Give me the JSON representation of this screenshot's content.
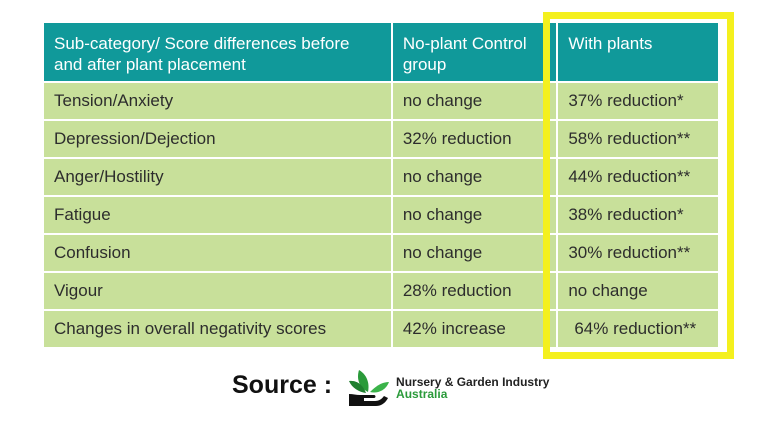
{
  "table": {
    "headers": [
      "Sub-category/ Score differences before and after plant placement",
      "No-plant Control group",
      "With plants"
    ],
    "rows": [
      [
        "Tension/Anxiety",
        "no change",
        "37% reduction*"
      ],
      [
        "Depression/Dejection",
        "32% reduction",
        "58% reduction**"
      ],
      [
        "Anger/Hostility",
        "no change",
        "44% reduction**"
      ],
      [
        "Fatigue",
        "no change",
        "38% reduction*"
      ],
      [
        "Confusion",
        "no change",
        "30% reduction**"
      ],
      [
        "Vigour",
        "28% reduction",
        "no change"
      ],
      [
        "Changes in overall negativity scores",
        "42% increase",
        "64% reduction**"
      ]
    ]
  },
  "source": {
    "label": "Source :",
    "logo_line1": "Nursery & Garden Industry",
    "logo_line2": "Australia",
    "logo_icon": "plant-hand-logo-icon"
  },
  "colors": {
    "header_bg": "#10999a",
    "cell_bg": "#c8e09a",
    "highlight": "#f4f01e"
  }
}
